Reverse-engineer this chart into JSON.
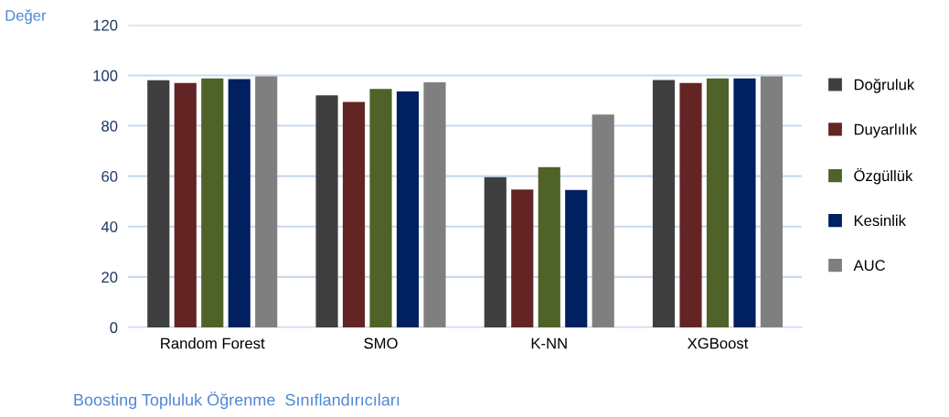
{
  "chart_data": {
    "type": "bar",
    "ylabel": "Değer",
    "xlabel": "Boosting Topluluk Öğrenme  Sınıflandırıcıları",
    "categories": [
      "Random Forest",
      "SMO",
      "K-NN",
      "XGBoost"
    ],
    "series": [
      {
        "name": "Doğruluk",
        "color": "#3f3f3f",
        "values": [
          98.1,
          92.1,
          59.6,
          98.2
        ]
      },
      {
        "name": "Duyarlılık",
        "color": "#632523",
        "values": [
          97.0,
          89.5,
          54.7,
          97.0
        ]
      },
      {
        "name": "Özgüllük",
        "color": "#4f6228",
        "values": [
          98.8,
          94.6,
          63.6,
          98.8
        ]
      },
      {
        "name": "Kesinlik",
        "color": "#002060",
        "values": [
          98.5,
          93.6,
          54.5,
          98.8
        ]
      },
      {
        "name": "AUC",
        "color": "#7f7f7f",
        "values": [
          99.6,
          97.3,
          84.5,
          99.6
        ]
      }
    ],
    "ylim": [
      0,
      120
    ],
    "yticks": [
      0,
      20,
      40,
      60,
      80,
      100,
      120
    ],
    "grid": "y",
    "legend": "right"
  }
}
